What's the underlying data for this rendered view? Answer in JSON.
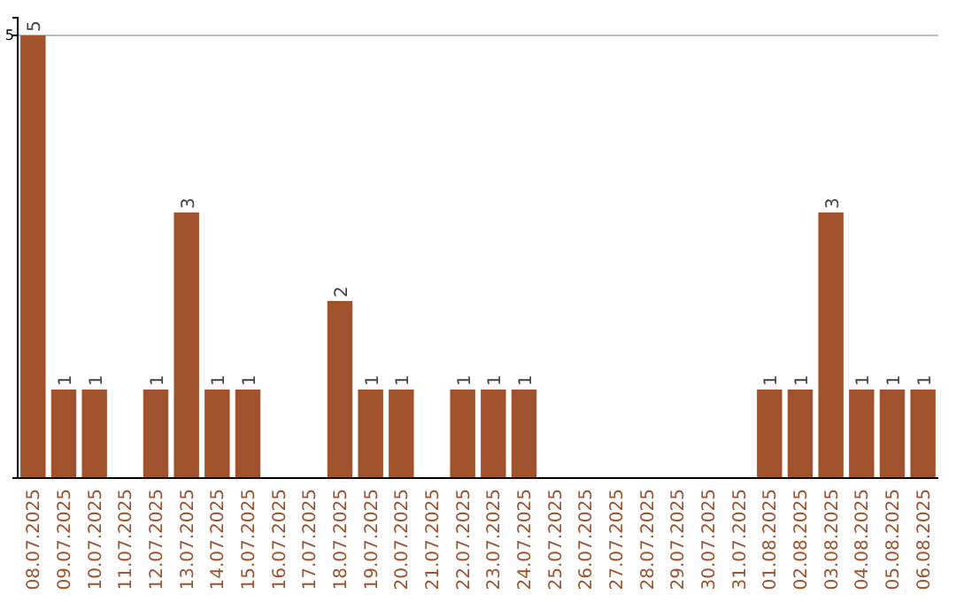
{
  "chart_data": {
    "type": "bar",
    "categories": [
      "08.07.2025",
      "09.07.2025",
      "10.07.2025",
      "11.07.2025",
      "12.07.2025",
      "13.07.2025",
      "14.07.2025",
      "15.07.2025",
      "16.07.2025",
      "17.07.2025",
      "18.07.2025",
      "19.07.2025",
      "20.07.2025",
      "21.07.2025",
      "22.07.2025",
      "23.07.2025",
      "24.07.2025",
      "25.07.2025",
      "26.07.2025",
      "27.07.2025",
      "28.07.2025",
      "29.07.2025",
      "30.07.2025",
      "31.07.2025",
      "01.08.2025",
      "02.08.2025",
      "03.08.2025",
      "04.08.2025",
      "05.08.2025",
      "06.08.2025"
    ],
    "values": [
      5,
      1,
      1,
      0,
      1,
      3,
      1,
      1,
      0,
      0,
      2,
      1,
      1,
      0,
      1,
      1,
      1,
      0,
      0,
      0,
      0,
      0,
      0,
      0,
      1,
      1,
      3,
      1,
      1,
      1
    ],
    "value_labels": [
      "5",
      "1",
      "1",
      null,
      "1",
      "3",
      "1",
      "1",
      null,
      null,
      "2",
      "1",
      "1",
      null,
      "1",
      "1",
      "1",
      null,
      null,
      null,
      null,
      null,
      null,
      null,
      "1",
      "1",
      "3",
      "1",
      "1",
      "1"
    ],
    "color": "#a0522d",
    "ylim": [
      0,
      5.2
    ],
    "yticks": [
      5
    ],
    "grid": "y"
  }
}
